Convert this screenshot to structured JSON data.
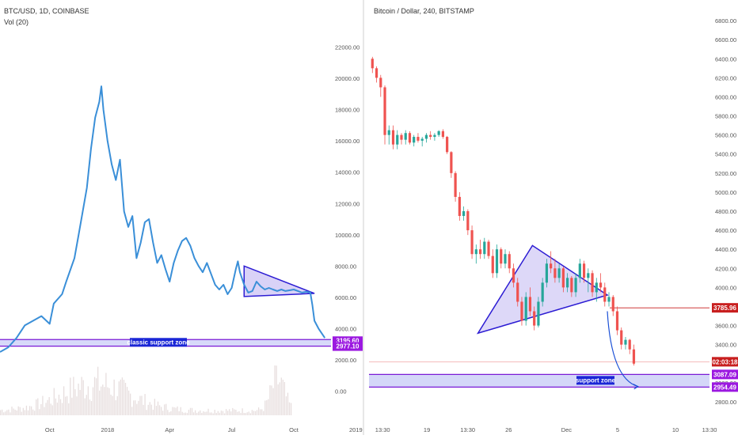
{
  "colors": {
    "line": "#3a8fd8",
    "up": "#26a69a",
    "down": "#ef5350",
    "triangle_fill": "#cfc7f5",
    "triangle_stroke": "#2b1bd3",
    "support_fill": "#cdd0f7",
    "support_stroke": "#7a1ad6",
    "label_purple": "#9b18e0",
    "label_blue": "#1a26d6",
    "label_red": "#c81f1f",
    "volume": "#e7dede",
    "arrow": "#1a4fd6",
    "divider": "#cfcfcf",
    "axis_text": "#555555"
  },
  "left_chart": {
    "title": "BTC/USD, 1D, COINBASE",
    "indicator": "Vol (20)",
    "axis_labels": [
      "22000.00",
      "20000.00",
      "18000.00",
      "16000.00",
      "14000.00",
      "12000.00",
      "10000.00",
      "8000.00",
      "6000.00",
      "4000.00",
      "2000.00",
      "0.00"
    ],
    "x_labels": [
      "Oct",
      "2018",
      "Apr",
      "Jul",
      "Oct",
      "2019"
    ],
    "price_labels": [
      "3195.60",
      "2977.10"
    ],
    "annotation": "classic support zone"
  },
  "right_chart": {
    "title": "Bitcoin / Dollar, 240, BITSTAMP",
    "axis_labels": [
      "6800.00",
      "6600.00",
      "6400.00",
      "6200.00",
      "6000.00",
      "5800.00",
      "5600.00",
      "5400.00",
      "5200.00",
      "5000.00",
      "4800.00",
      "4600.00",
      "4400.00",
      "4200.00",
      "4000.00",
      "3800.00",
      "3600.00",
      "3400.00",
      "3200.00",
      "3000.00",
      "2800.00"
    ],
    "x_labels": [
      "13:30",
      "19",
      "13:30",
      "26",
      "Dec",
      "5",
      "10",
      "13:30"
    ],
    "price_labels": [
      "3785.96",
      "02:03:18",
      "3087.09",
      "2954.49"
    ],
    "annotation": "support zone"
  },
  "chart_data": [
    {
      "type": "line",
      "title": "BTC/USD, 1D, COINBASE",
      "indicator": "Vol (20)",
      "ylim": [
        -1800,
        23500
      ],
      "y_ticks": [
        22000,
        20000,
        18000,
        16000,
        14000,
        12000,
        10000,
        8000,
        6000,
        4000,
        2000,
        0
      ],
      "x_ticks": [
        "Oct",
        "2018",
        "Apr",
        "Jul",
        "Oct",
        "2019"
      ],
      "x_tick_values": [
        0.12,
        0.26,
        0.41,
        0.56,
        0.71,
        0.86
      ],
      "series": [
        {
          "values": [
            [
              0,
              2500
            ],
            [
              0.02,
              2800
            ],
            [
              0.04,
              3400
            ],
            [
              0.06,
              4200
            ],
            [
              0.08,
              4500
            ],
            [
              0.1,
              4800
            ],
            [
              0.12,
              4300
            ],
            [
              0.13,
              5600
            ],
            [
              0.15,
              6200
            ],
            [
              0.16,
              7000
            ],
            [
              0.18,
              8500
            ],
            [
              0.19,
              10000
            ],
            [
              0.2,
              11500
            ],
            [
              0.21,
              13000
            ],
            [
              0.22,
              15500
            ],
            [
              0.23,
              17500
            ],
            [
              0.24,
              18500
            ],
            [
              0.245,
              19500
            ],
            [
              0.25,
              18000
            ],
            [
              0.26,
              16000
            ],
            [
              0.27,
              14500
            ],
            [
              0.28,
              13500
            ],
            [
              0.29,
              14800
            ],
            [
              0.3,
              11500
            ],
            [
              0.31,
              10500
            ],
            [
              0.32,
              11200
            ],
            [
              0.33,
              8500
            ],
            [
              0.34,
              9500
            ],
            [
              0.35,
              10800
            ],
            [
              0.36,
              11000
            ],
            [
              0.37,
              9500
            ],
            [
              0.38,
              8200
            ],
            [
              0.39,
              8700
            ],
            [
              0.4,
              7800
            ],
            [
              0.41,
              7000
            ],
            [
              0.42,
              8200
            ],
            [
              0.43,
              9000
            ],
            [
              0.44,
              9600
            ],
            [
              0.45,
              9800
            ],
            [
              0.46,
              9300
            ],
            [
              0.47,
              8500
            ],
            [
              0.48,
              8000
            ],
            [
              0.49,
              7600
            ],
            [
              0.5,
              8200
            ],
            [
              0.51,
              7500
            ],
            [
              0.52,
              6800
            ],
            [
              0.53,
              6500
            ],
            [
              0.54,
              6800
            ],
            [
              0.55,
              6200
            ],
            [
              0.56,
              6600
            ],
            [
              0.57,
              7800
            ],
            [
              0.575,
              8300
            ],
            [
              0.58,
              7600
            ],
            [
              0.59,
              6800
            ],
            [
              0.6,
              6300
            ],
            [
              0.61,
              6400
            ],
            [
              0.62,
              7000
            ],
            [
              0.63,
              6700
            ],
            [
              0.64,
              6500
            ],
            [
              0.65,
              6600
            ],
            [
              0.66,
              6500
            ],
            [
              0.67,
              6400
            ],
            [
              0.68,
              6500
            ],
            [
              0.69,
              6400
            ],
            [
              0.7,
              6450
            ],
            [
              0.71,
              6500
            ],
            [
              0.72,
              6400
            ],
            [
              0.73,
              6300
            ],
            [
              0.74,
              6350
            ],
            [
              0.75,
              6300
            ],
            [
              0.755,
              5500
            ],
            [
              0.76,
              4500
            ],
            [
              0.77,
              4000
            ],
            [
              0.78,
              3600
            ],
            [
              0.785,
              3400
            ]
          ]
        }
      ],
      "support_zone": [
        2977.1,
        3195.6
      ],
      "triangle_apexes": [
        [
          0.59,
          8000
        ],
        [
          0.59,
          6050
        ],
        [
          0.76,
          6250
        ]
      ]
    },
    {
      "type": "candlestick",
      "title": "Bitcoin / Dollar, 240, BITSTAMP",
      "ylim": [
        2700,
        6950
      ],
      "y_ticks": [
        6800,
        6600,
        6400,
        6200,
        6000,
        5800,
        5600,
        5400,
        5200,
        5000,
        4800,
        4600,
        4400,
        4200,
        4000,
        3800,
        3600,
        3400,
        3200,
        3000,
        2800
      ],
      "x_ticks": [
        "13:30",
        "19",
        "13:30",
        "26",
        "Dec",
        "5",
        "10",
        "13:30"
      ],
      "x_tick_values": [
        0.04,
        0.17,
        0.29,
        0.41,
        0.58,
        0.73,
        0.9,
        1.0
      ],
      "ohlc": [
        [
          6400,
          6420,
          6250,
          6300
        ],
        [
          6300,
          6320,
          6150,
          6200
        ],
        [
          6200,
          6230,
          6000,
          6100
        ],
        [
          6100,
          6120,
          5500,
          5600
        ],
        [
          5600,
          5700,
          5500,
          5650
        ],
        [
          5650,
          5700,
          5450,
          5500
        ],
        [
          5500,
          5650,
          5450,
          5600
        ],
        [
          5600,
          5620,
          5500,
          5550
        ],
        [
          5550,
          5650,
          5500,
          5620
        ],
        [
          5620,
          5640,
          5500,
          5520
        ],
        [
          5520,
          5600,
          5480,
          5580
        ],
        [
          5580,
          5620,
          5520,
          5540
        ],
        [
          5540,
          5580,
          5480,
          5560
        ],
        [
          5560,
          5620,
          5520,
          5600
        ],
        [
          5600,
          5640,
          5550,
          5580
        ],
        [
          5580,
          5620,
          5540,
          5600
        ],
        [
          5600,
          5650,
          5580,
          5640
        ],
        [
          5640,
          5660,
          5560,
          5580
        ],
        [
          5580,
          5590,
          5400,
          5420
        ],
        [
          5420,
          5430,
          5150,
          5200
        ],
        [
          5200,
          5220,
          4900,
          4950
        ],
        [
          4950,
          5000,
          4700,
          4750
        ],
        [
          4750,
          4850,
          4700,
          4800
        ],
        [
          4800,
          4820,
          4550,
          4600
        ],
        [
          4600,
          4650,
          4300,
          4350
        ],
        [
          4350,
          4450,
          4250,
          4400
        ],
        [
          4400,
          4500,
          4300,
          4350
        ],
        [
          4350,
          4520,
          4300,
          4480
        ],
        [
          4480,
          4500,
          4300,
          4330
        ],
        [
          4330,
          4400,
          4100,
          4150
        ],
        [
          4150,
          4450,
          4100,
          4400
        ],
        [
          4400,
          4420,
          4200,
          4250
        ],
        [
          4250,
          4400,
          4200,
          4350
        ],
        [
          4350,
          4380,
          4150,
          4200
        ],
        [
          4200,
          4250,
          4000,
          4050
        ],
        [
          4050,
          4100,
          3800,
          3850
        ],
        [
          3850,
          3900,
          3600,
          3650
        ],
        [
          3650,
          3950,
          3600,
          3900
        ],
        [
          3900,
          4000,
          3700,
          3750
        ],
        [
          3750,
          3800,
          3550,
          3600
        ],
        [
          3600,
          3900,
          3580,
          3850
        ],
        [
          3850,
          4100,
          3800,
          4050
        ],
        [
          4050,
          4300,
          4000,
          4250
        ],
        [
          4250,
          4380,
          4150,
          4200
        ],
        [
          4200,
          4300,
          4050,
          4100
        ],
        [
          4100,
          4250,
          4050,
          4200
        ],
        [
          4200,
          4220,
          3950,
          4000
        ],
        [
          4000,
          4150,
          3950,
          4100
        ],
        [
          4100,
          4120,
          3900,
          3950
        ],
        [
          3950,
          4150,
          3900,
          4100
        ],
        [
          4100,
          4300,
          4050,
          4250
        ],
        [
          4250,
          4280,
          4050,
          4100
        ],
        [
          4100,
          4200,
          3950,
          4150
        ],
        [
          4150,
          4180,
          3900,
          3950
        ],
        [
          3950,
          4100,
          3850,
          4050
        ],
        [
          4050,
          4150,
          3950,
          4000
        ],
        [
          4000,
          4050,
          3800,
          3850
        ],
        [
          3850,
          3950,
          3800,
          3900
        ],
        [
          3900,
          3920,
          3700,
          3750
        ],
        [
          3750,
          3800,
          3500,
          3550
        ],
        [
          3550,
          3580,
          3350,
          3400
        ],
        [
          3400,
          3480,
          3350,
          3450
        ],
        [
          3450,
          3460,
          3300,
          3350
        ],
        [
          3350,
          3400,
          3180,
          3200
        ]
      ],
      "triangle_apexes": [
        [
          0.32,
          3520
        ],
        [
          0.48,
          4440
        ],
        [
          0.7,
          3920
        ]
      ],
      "support_zone": [
        2954.49,
        3087.09
      ],
      "resistance_level": 3785.96,
      "current_price_line": 3220,
      "countdown": "02:03:18"
    }
  ]
}
